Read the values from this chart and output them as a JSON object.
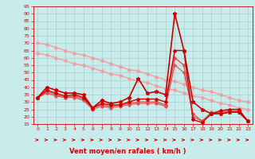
{
  "xlabel": "Vent moyen/en rafales ( km/h )",
  "bg_color": "#c8ecec",
  "grid_color": "#a0c8c8",
  "line_color_dark": "#cc0000",
  "xmin": -0.5,
  "xmax": 23.5,
  "ymin": 15,
  "ymax": 95,
  "yticks": [
    15,
    20,
    25,
    30,
    35,
    40,
    45,
    50,
    55,
    60,
    65,
    70,
    75,
    80,
    85,
    90,
    95
  ],
  "xticks": [
    0,
    1,
    2,
    3,
    4,
    5,
    6,
    7,
    8,
    9,
    10,
    11,
    12,
    13,
    14,
    15,
    16,
    17,
    18,
    19,
    20,
    21,
    22,
    23
  ],
  "series": [
    {
      "x": [
        0,
        1,
        2,
        3,
        4,
        5,
        6,
        7,
        8,
        9,
        10,
        11,
        12,
        13,
        14,
        15,
        16,
        17,
        18,
        19,
        20,
        21,
        22,
        23
      ],
      "y": [
        70,
        69,
        67,
        65,
        63,
        62,
        60,
        58,
        56,
        54,
        52,
        51,
        49,
        47,
        45,
        44,
        42,
        40,
        38,
        37,
        35,
        33,
        31,
        30
      ],
      "color": "#f0a0a0",
      "lw": 1.0,
      "marker": "D",
      "ms": 2.0,
      "zorder": 2
    },
    {
      "x": [
        0,
        1,
        2,
        3,
        4,
        5,
        6,
        7,
        8,
        9,
        10,
        11,
        12,
        13,
        14,
        15,
        16,
        17,
        18,
        19,
        20,
        21,
        22,
        23
      ],
      "y": [
        63,
        62,
        60,
        58,
        56,
        55,
        53,
        51,
        49,
        48,
        46,
        44,
        43,
        41,
        39,
        38,
        36,
        34,
        33,
        31,
        29,
        28,
        26,
        25
      ],
      "color": "#f0a0a0",
      "lw": 1.0,
      "marker": "D",
      "ms": 2.0,
      "zorder": 2
    },
    {
      "x": [
        0,
        1,
        2,
        3,
        4,
        5,
        6,
        7,
        8,
        9,
        10,
        11,
        12,
        13,
        14,
        15,
        16,
        17,
        18,
        19,
        20,
        21,
        22,
        23
      ],
      "y": [
        33,
        40,
        38,
        36,
        36,
        35,
        26,
        31,
        29,
        30,
        33,
        46,
        36,
        37,
        35,
        90,
        65,
        30,
        25,
        22,
        22,
        23,
        23,
        17
      ],
      "color": "#cc0000",
      "lw": 1.2,
      "marker": "*",
      "ms": 3.5,
      "zorder": 5
    },
    {
      "x": [
        0,
        1,
        2,
        3,
        4,
        5,
        6,
        7,
        8,
        9,
        10,
        11,
        12,
        13,
        14,
        15,
        16,
        17,
        18,
        19,
        20,
        21,
        22,
        23
      ],
      "y": [
        33,
        38,
        36,
        34,
        35,
        33,
        26,
        29,
        28,
        28,
        30,
        32,
        32,
        32,
        30,
        65,
        65,
        18,
        16,
        22,
        24,
        25,
        25,
        17
      ],
      "color": "#cc0000",
      "lw": 1.0,
      "marker": "D",
      "ms": 2.0,
      "zorder": 4
    },
    {
      "x": [
        0,
        1,
        2,
        3,
        4,
        5,
        6,
        7,
        8,
        9,
        10,
        11,
        12,
        13,
        14,
        15,
        16,
        17,
        18,
        19,
        20,
        21,
        22,
        23
      ],
      "y": [
        33,
        37,
        35,
        33,
        34,
        32,
        26,
        28,
        27,
        28,
        29,
        30,
        30,
        30,
        28,
        60,
        55,
        20,
        17,
        22,
        23,
        24,
        24,
        17
      ],
      "color": "#e05050",
      "lw": 1.0,
      "marker": "D",
      "ms": 2.0,
      "zorder": 3
    },
    {
      "x": [
        0,
        1,
        2,
        3,
        4,
        5,
        6,
        7,
        8,
        9,
        10,
        11,
        12,
        13,
        14,
        15,
        16,
        17,
        18,
        19,
        20,
        21,
        22,
        23
      ],
      "y": [
        33,
        36,
        34,
        33,
        33,
        31,
        25,
        27,
        26,
        27,
        28,
        29,
        29,
        29,
        27,
        55,
        50,
        22,
        17,
        23,
        23,
        24,
        23,
        17
      ],
      "color": "#e05050",
      "lw": 0.8,
      "marker": "D",
      "ms": 1.8,
      "zorder": 3
    }
  ],
  "arrow_color": "#cc0000"
}
